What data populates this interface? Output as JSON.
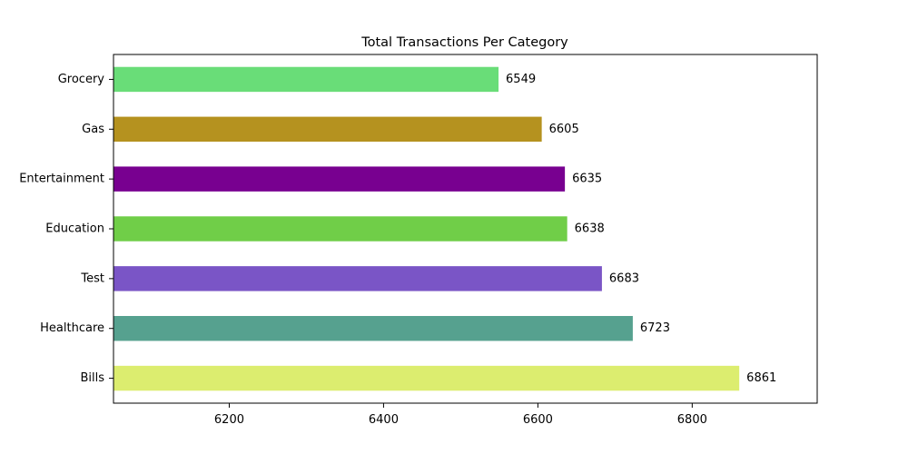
{
  "chart_data": {
    "type": "bar",
    "orientation": "horizontal",
    "title": "Total Transactions Per Category",
    "xlabel": "",
    "ylabel": "",
    "categories": [
      "Grocery",
      "Gas",
      "Entertainment",
      "Education",
      "Test",
      "Healthcare",
      "Bills"
    ],
    "values": [
      6549,
      6605,
      6635,
      6638,
      6683,
      6723,
      6861
    ],
    "colors": [
      "#69dd78",
      "#b5921f",
      "#780090",
      "#70ce48",
      "#7a55c6",
      "#56a18f",
      "#dced6f"
    ],
    "xlim": [
      6050,
      6962
    ],
    "xticks": [
      6200,
      6400,
      6600,
      6800
    ],
    "grid": false,
    "legend": "none"
  }
}
